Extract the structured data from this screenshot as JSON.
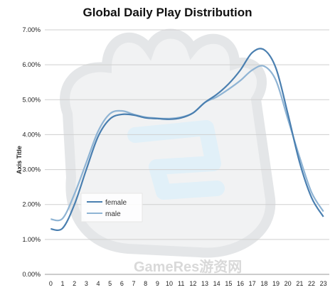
{
  "watermark": {
    "text": "GameRes游资网"
  },
  "chart_data": {
    "type": "line",
    "title": "Global Daily Play Distribution",
    "xlabel": "",
    "ylabel": "Axis Title",
    "categories": [
      "0",
      "1",
      "2",
      "3",
      "4",
      "5",
      "6",
      "7",
      "8",
      "9",
      "10",
      "11",
      "12",
      "13",
      "14",
      "15",
      "16",
      "17",
      "18",
      "19",
      "20",
      "21",
      "22",
      "23"
    ],
    "ylim": [
      0,
      7
    ],
    "yticks": [
      "0.00%",
      "1.00%",
      "2.00%",
      "3.00%",
      "4.00%",
      "5.00%",
      "6.00%",
      "7.00%"
    ],
    "grid": true,
    "legend_position": "bottom-left",
    "series": [
      {
        "name": "female",
        "color": "#4a7fb0",
        "values": [
          1.3,
          1.32,
          2.0,
          3.0,
          3.95,
          4.45,
          4.58,
          4.56,
          4.48,
          4.46,
          4.44,
          4.48,
          4.62,
          4.92,
          5.15,
          5.45,
          5.85,
          6.35,
          6.43,
          5.9,
          4.6,
          3.2,
          2.2,
          1.65
        ]
      },
      {
        "name": "male",
        "color": "#8fb4d4",
        "values": [
          1.58,
          1.6,
          2.3,
          3.2,
          4.1,
          4.6,
          4.68,
          4.58,
          4.5,
          4.47,
          4.46,
          4.5,
          4.62,
          4.92,
          5.08,
          5.3,
          5.55,
          5.85,
          5.96,
          5.55,
          4.45,
          3.35,
          2.35,
          1.8
        ]
      }
    ]
  }
}
